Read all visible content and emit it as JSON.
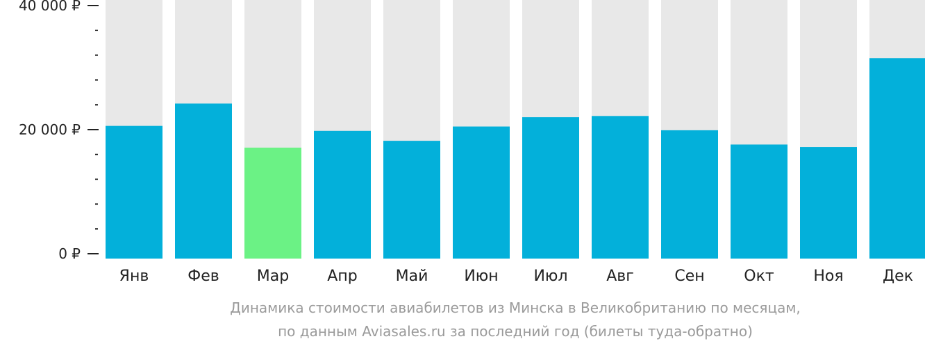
{
  "chart_data": {
    "type": "bar",
    "categories": [
      "Янв",
      "Фев",
      "Мар",
      "Апр",
      "Май",
      "Июн",
      "Июл",
      "Авг",
      "Сен",
      "Окт",
      "Ноя",
      "Дек"
    ],
    "values": [
      20600,
      24200,
      17100,
      19800,
      18200,
      20500,
      22000,
      22200,
      19900,
      17600,
      17200,
      31500
    ],
    "ylim": [
      0,
      40000
    ],
    "yticks": [
      {
        "value": 0,
        "label": "0 ₽"
      },
      {
        "value": 20000,
        "label": "20 000 ₽"
      },
      {
        "value": 40000,
        "label": "40 000 ₽"
      }
    ],
    "minor_tick_step": 4000,
    "highlight_index": 2,
    "colors": {
      "bar": "#03b0da",
      "highlight": "#6bf285",
      "background_bar": "#e8e8e8",
      "axis": "#222222"
    },
    "caption_line1": "Динамика стоимости авиабилетов из Минска в Великобританию по месяцам,",
    "caption_line2": "по данным Aviasales.ru за последний год (билеты туда-обратно)"
  }
}
